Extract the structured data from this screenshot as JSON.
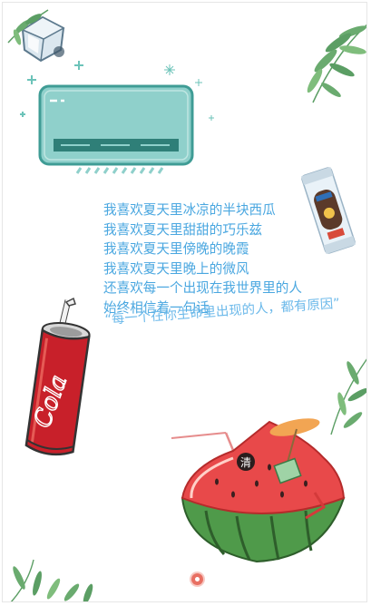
{
  "poem": {
    "lines": [
      "我喜欢夏天里冰凉的半块西瓜",
      "我喜欢夏天里甜甜的巧乐兹",
      "我喜欢夏天里傍晚的晚霞",
      "我喜欢夏天里晚上的微风",
      "还喜欢每一个出现在我世界里的人",
      "始终相信着一句话"
    ],
    "quote": "“每一个在你生命里出现的人，都有原因”"
  },
  "can": {
    "brand_text": "Cola"
  },
  "watermelon": {
    "badge_text": "清"
  },
  "icons": {
    "ice_cube": "ice-cube-icon",
    "leaf": "leaf-icon",
    "air_conditioner": "air-conditioner-icon",
    "popsicle": "popsicle-icon",
    "cola_can": "cola-can-icon",
    "watermelon": "watermelon-icon",
    "music": "music-icon"
  },
  "colors": {
    "text": "#4aa7e0",
    "quote": "#6cb9ea",
    "ac_body": "#8fd0cb",
    "leaf": "#5b9e64",
    "can_red": "#c8202a",
    "melon_red": "#e8494a",
    "melon_green": "#4f9a4a",
    "music_button": "#e86f62"
  }
}
